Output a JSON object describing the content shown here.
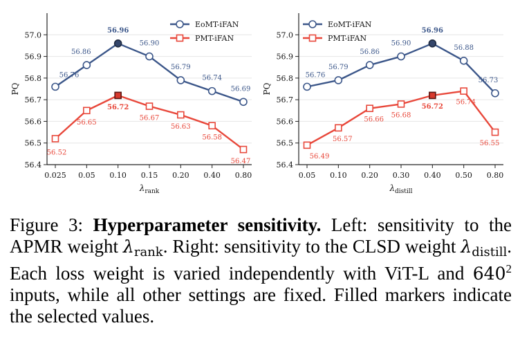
{
  "chart_data": [
    {
      "type": "line",
      "categories": [
        "0.025",
        "0.05",
        "0.10",
        "0.15",
        "0.20",
        "0.40",
        "0.80"
      ],
      "ylabel": "PQ",
      "xlabel_symbol": "λ",
      "xlabel_sub": "rank",
      "ylim": [
        56.4,
        57.1
      ],
      "yticks": [
        "56.4",
        "56.5",
        "56.6",
        "56.7",
        "56.8",
        "56.9",
        "57.0"
      ],
      "grid": "horizontal",
      "legend": "top-right",
      "selected_index": 2,
      "series": [
        {
          "name": "EoMT-iFAN",
          "color": "#3b5689",
          "marker": "circle",
          "values": [
            56.76,
            56.86,
            56.96,
            56.9,
            56.79,
            56.74,
            56.69
          ],
          "labels": [
            "56.76",
            "56.86",
            "56.96",
            "56.90",
            "56.79",
            "56.74",
            "56.69"
          ]
        },
        {
          "name": "PMT-iFAN",
          "color": "#e8473a",
          "marker": "square",
          "values": [
            56.52,
            56.65,
            56.72,
            56.67,
            56.63,
            56.58,
            56.47
          ],
          "labels": [
            "56.52",
            "56.65",
            "56.72",
            "56.67",
            "56.63",
            "56.58",
            "56.47"
          ]
        }
      ]
    },
    {
      "type": "line",
      "categories": [
        "0.05",
        "0.10",
        "0.20",
        "0.30",
        "0.40",
        "0.50",
        "0.80"
      ],
      "ylabel": "PQ",
      "xlabel_symbol": "λ",
      "xlabel_sub": "distill",
      "ylim": [
        56.4,
        57.1
      ],
      "yticks": [
        "56.4",
        "56.5",
        "56.6",
        "56.7",
        "56.8",
        "56.9",
        "57.0"
      ],
      "grid": "horizontal",
      "legend": "top-left",
      "selected_index": 4,
      "series": [
        {
          "name": "EoMT-iFAN",
          "color": "#3b5689",
          "marker": "circle",
          "values": [
            56.76,
            56.79,
            56.86,
            56.9,
            56.96,
            56.88,
            56.73
          ],
          "labels": [
            "56.76",
            "56.79",
            "56.86",
            "56.90",
            "56.96",
            "56.88",
            "56.73"
          ]
        },
        {
          "name": "PMT-iFAN",
          "color": "#e8473a",
          "marker": "square",
          "values": [
            56.49,
            56.57,
            56.66,
            56.68,
            56.72,
            56.74,
            56.55
          ],
          "labels": [
            "56.49",
            "56.57",
            "56.66",
            "56.68",
            "56.72",
            "56.74",
            "56.55"
          ]
        }
      ]
    }
  ],
  "caption": {
    "label": "Figure 3: ",
    "bold": "Hyperparameter sensitivity.",
    "t1": " Left: sensitivity to the APMR weight ",
    "lambda": "λ",
    "rank": "rank",
    "t2": ". Right: sensitivity to the CLSD weight ",
    "distill": "distill",
    "t3": ". Each loss weight is varied independently with ViT-L and ",
    "res": "640",
    "sup": "2",
    "t4": " inputs, while all other settings are fixed. Filled markers indicate the selected values."
  }
}
